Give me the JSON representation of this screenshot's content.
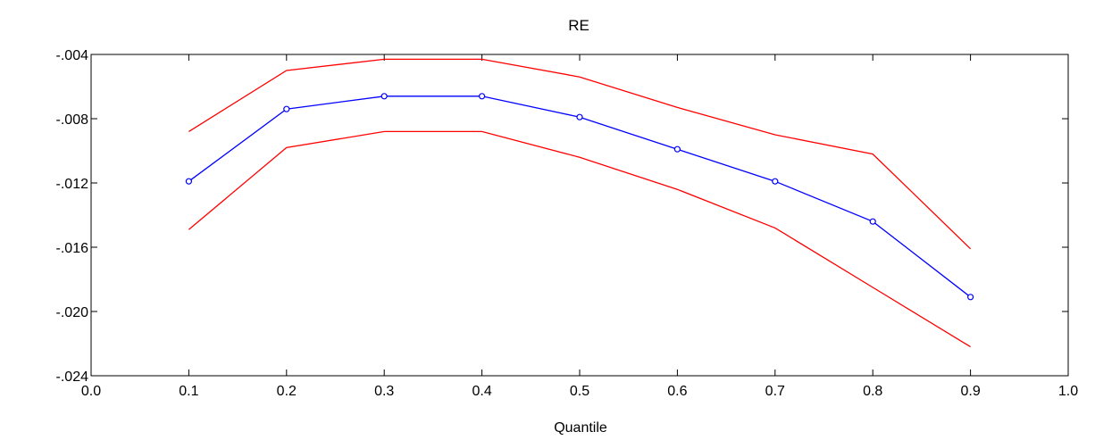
{
  "chart_data": {
    "type": "line",
    "title": "RE",
    "xlabel": "Quantile",
    "ylabel": "",
    "xlim": [
      0.0,
      1.0
    ],
    "ylim": [
      -0.024,
      -0.004
    ],
    "x_ticks": [
      0.0,
      0.1,
      0.2,
      0.3,
      0.4,
      0.5,
      0.6,
      0.7,
      0.8,
      0.9,
      1.0
    ],
    "x_tick_labels": [
      "0.0",
      "0.1",
      "0.2",
      "0.3",
      "0.4",
      "0.5",
      "0.6",
      "0.7",
      "0.8",
      "0.9",
      "1.0"
    ],
    "y_ticks": [
      -0.004,
      -0.008,
      -0.012,
      -0.016,
      -0.02,
      -0.024
    ],
    "y_tick_labels": [
      "-.004",
      "-.008",
      "-.012",
      "-.016",
      "-.020",
      "-.024"
    ],
    "grid": false,
    "legend": "none",
    "x": [
      0.1,
      0.2,
      0.3,
      0.4,
      0.5,
      0.6,
      0.7,
      0.8,
      0.9
    ],
    "series": [
      {
        "role": "upper-bound",
        "color": "#ff0000",
        "markers": false,
        "values": [
          -0.0088,
          -0.005,
          -0.0043,
          -0.0043,
          -0.0054,
          -0.0073,
          -0.009,
          -0.0102,
          -0.0161
        ]
      },
      {
        "role": "estimate",
        "color": "#0000ff",
        "markers": true,
        "values": [
          -0.0119,
          -0.0074,
          -0.0066,
          -0.0066,
          -0.0079,
          -0.0099,
          -0.0119,
          -0.0144,
          -0.0191
        ]
      },
      {
        "role": "lower-bound",
        "color": "#ff0000",
        "markers": false,
        "values": [
          -0.0149,
          -0.0098,
          -0.0088,
          -0.0088,
          -0.0104,
          -0.0124,
          -0.0148,
          -0.0185,
          -0.0222
        ]
      }
    ]
  }
}
